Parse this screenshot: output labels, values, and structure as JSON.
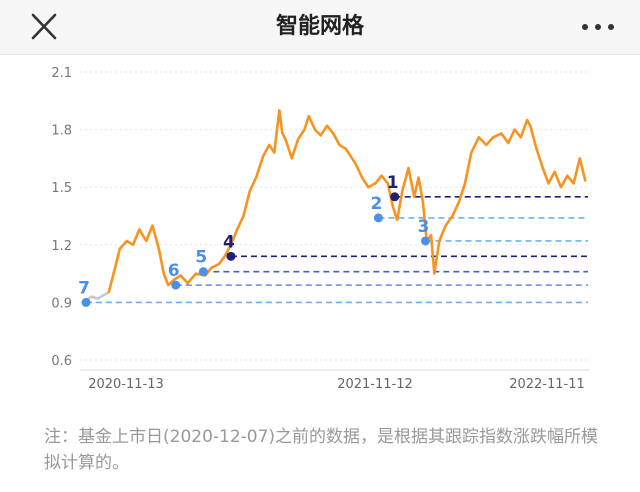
{
  "header": {
    "title": "智能网格",
    "close_icon": "close-icon",
    "more_icon": "more-dots-icon"
  },
  "chart_data": {
    "type": "line",
    "y_ticks": [
      "2.1",
      "1.8",
      "1.5",
      "1.2",
      "0.9",
      "0.6"
    ],
    "ylim": [
      0.6,
      2.1
    ],
    "x_ticks": [
      "2020-11-13",
      "2021-11-12",
      "2022-11-11"
    ],
    "x_range": [
      "2020-11-01",
      "2023-01-10"
    ],
    "grid": true,
    "series": [
      {
        "color_pre_listing": "#c8c8c8",
        "color": "#f7931e",
        "color_highlight": "#ef6a1e",
        "points": [
          [
            "2020-11-01",
            0.91
          ],
          [
            "2020-11-10",
            0.93
          ],
          [
            "2020-11-20",
            0.92
          ],
          [
            "2020-11-30",
            0.94
          ],
          [
            "2020-12-07",
            0.95
          ],
          [
            "2020-12-15",
            1.05
          ],
          [
            "2020-12-25",
            1.18
          ],
          [
            "2021-01-05",
            1.22
          ],
          [
            "2021-01-15",
            1.2
          ],
          [
            "2021-01-25",
            1.28
          ],
          [
            "2021-02-05",
            1.22
          ],
          [
            "2021-02-15",
            1.3
          ],
          [
            "2021-02-25",
            1.18
          ],
          [
            "2021-03-05",
            1.05
          ],
          [
            "2021-03-12",
            0.99
          ],
          [
            "2021-03-22",
            1.02
          ],
          [
            "2021-04-01",
            1.04
          ],
          [
            "2021-04-12",
            1.0
          ],
          [
            "2021-04-25",
            1.05
          ],
          [
            "2021-05-10",
            1.04
          ],
          [
            "2021-05-20",
            1.08
          ],
          [
            "2021-06-01",
            1.1
          ],
          [
            "2021-06-10",
            1.14
          ],
          [
            "2021-06-20",
            1.2
          ],
          [
            "2021-06-30",
            1.28
          ],
          [
            "2021-07-10",
            1.35
          ],
          [
            "2021-07-20",
            1.48
          ],
          [
            "2021-07-30",
            1.55
          ],
          [
            "2021-08-10",
            1.66
          ],
          [
            "2021-08-20",
            1.72
          ],
          [
            "2021-08-28",
            1.68
          ],
          [
            "2021-09-05",
            1.9
          ],
          [
            "2021-09-10",
            1.78
          ],
          [
            "2021-09-15",
            1.75
          ],
          [
            "2021-09-25",
            1.65
          ],
          [
            "2021-10-05",
            1.75
          ],
          [
            "2021-10-15",
            1.8
          ],
          [
            "2021-10-22",
            1.87
          ],
          [
            "2021-11-01",
            1.8
          ],
          [
            "2021-11-10",
            1.77
          ],
          [
            "2021-11-20",
            1.82
          ],
          [
            "2021-11-30",
            1.78
          ],
          [
            "2021-12-10",
            1.72
          ],
          [
            "2021-12-20",
            1.7
          ],
          [
            "2022-01-05",
            1.62
          ],
          [
            "2022-01-15",
            1.55
          ],
          [
            "2022-01-25",
            1.5
          ],
          [
            "2022-02-05",
            1.52
          ],
          [
            "2022-02-15",
            1.56
          ],
          [
            "2022-02-25",
            1.52
          ],
          [
            "2022-03-05",
            1.4
          ],
          [
            "2022-03-12",
            1.33
          ],
          [
            "2022-03-20",
            1.48
          ],
          [
            "2022-03-30",
            1.6
          ],
          [
            "2022-04-08",
            1.45
          ],
          [
            "2022-04-15",
            1.55
          ],
          [
            "2022-04-22",
            1.42
          ],
          [
            "2022-04-28",
            1.22
          ],
          [
            "2022-05-05",
            1.25
          ],
          [
            "2022-05-10",
            1.05
          ],
          [
            "2022-05-18",
            1.22
          ],
          [
            "2022-05-28",
            1.3
          ],
          [
            "2022-06-08",
            1.35
          ],
          [
            "2022-06-18",
            1.42
          ],
          [
            "2022-06-28",
            1.52
          ],
          [
            "2022-07-08",
            1.68
          ],
          [
            "2022-07-20",
            1.76
          ],
          [
            "2022-08-01",
            1.72
          ],
          [
            "2022-08-12",
            1.76
          ],
          [
            "2022-08-25",
            1.78
          ],
          [
            "2022-09-05",
            1.73
          ],
          [
            "2022-09-15",
            1.8
          ],
          [
            "2022-09-25",
            1.76
          ],
          [
            "2022-10-05",
            1.85
          ],
          [
            "2022-10-10",
            1.82
          ],
          [
            "2022-10-20",
            1.7
          ],
          [
            "2022-10-30",
            1.6
          ],
          [
            "2022-11-08",
            1.52
          ],
          [
            "2022-11-18",
            1.58
          ],
          [
            "2022-11-28",
            1.5
          ],
          [
            "2022-12-08",
            1.56
          ],
          [
            "2022-12-18",
            1.52
          ],
          [
            "2022-12-28",
            1.65
          ],
          [
            "2023-01-06",
            1.53
          ]
        ]
      }
    ],
    "grid_lines": [
      {
        "label": "7",
        "date": "2020-11-01",
        "value": 0.9,
        "color": "#4a8fe8",
        "line_color": "#6db0f0"
      },
      {
        "label": "6",
        "date": "2021-03-24",
        "value": 0.99,
        "color": "#4a8fe8",
        "line_color": "#6a86e0"
      },
      {
        "label": "5",
        "date": "2021-05-07",
        "value": 1.06,
        "color": "#4a8fe8",
        "line_color": "#3f5fd0"
      },
      {
        "label": "4",
        "date": "2021-06-20",
        "value": 1.14,
        "color": "#1f1f7a",
        "line_color": "#1f1f7a"
      },
      {
        "label": "3",
        "date": "2022-04-26",
        "value": 1.22,
        "color": "#4a8fe8",
        "line_color": "#6db0f0"
      },
      {
        "label": "2",
        "date": "2022-02-10",
        "value": 1.34,
        "color": "#4a8fe8",
        "line_color": "#6db0f0"
      },
      {
        "label": "1",
        "date": "2022-03-08",
        "value": 1.45,
        "color": "#1f1f7a",
        "line_color": "#1f1f7a"
      }
    ]
  },
  "footnote": "注：基金上市日(2020-12-07)之前的数据，是根据其跟踪指数涨跌幅所模拟计算的。"
}
